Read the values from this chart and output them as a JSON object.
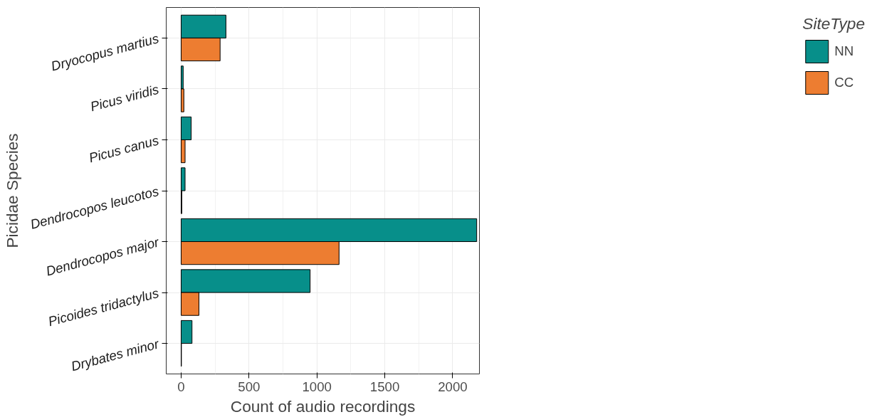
{
  "chart_data": {
    "type": "bar",
    "orientation": "horizontal",
    "xlabel": "Count of audio recordings",
    "ylabel": "Picidae Species",
    "legend_title": "SiteType",
    "categories": [
      "Dryocopus martius",
      "Picus viridis",
      "Picus canus",
      "Dendrocopos leucotos",
      "Dendrocopos major",
      "Picoides tridactylus",
      "Drybates minor"
    ],
    "series": [
      {
        "name": "NN",
        "color": "#078f8a",
        "values": [
          330,
          15,
          74,
          29,
          2177,
          950,
          80
        ]
      },
      {
        "name": "CC",
        "color": "#ed7d31",
        "values": [
          287,
          20,
          29,
          5,
          1163,
          131,
          2
        ]
      }
    ],
    "xlim": [
      -110,
      2197
    ],
    "xticks": [
      0,
      500,
      1000,
      1500,
      2000
    ],
    "grid": true,
    "legend": "right"
  }
}
